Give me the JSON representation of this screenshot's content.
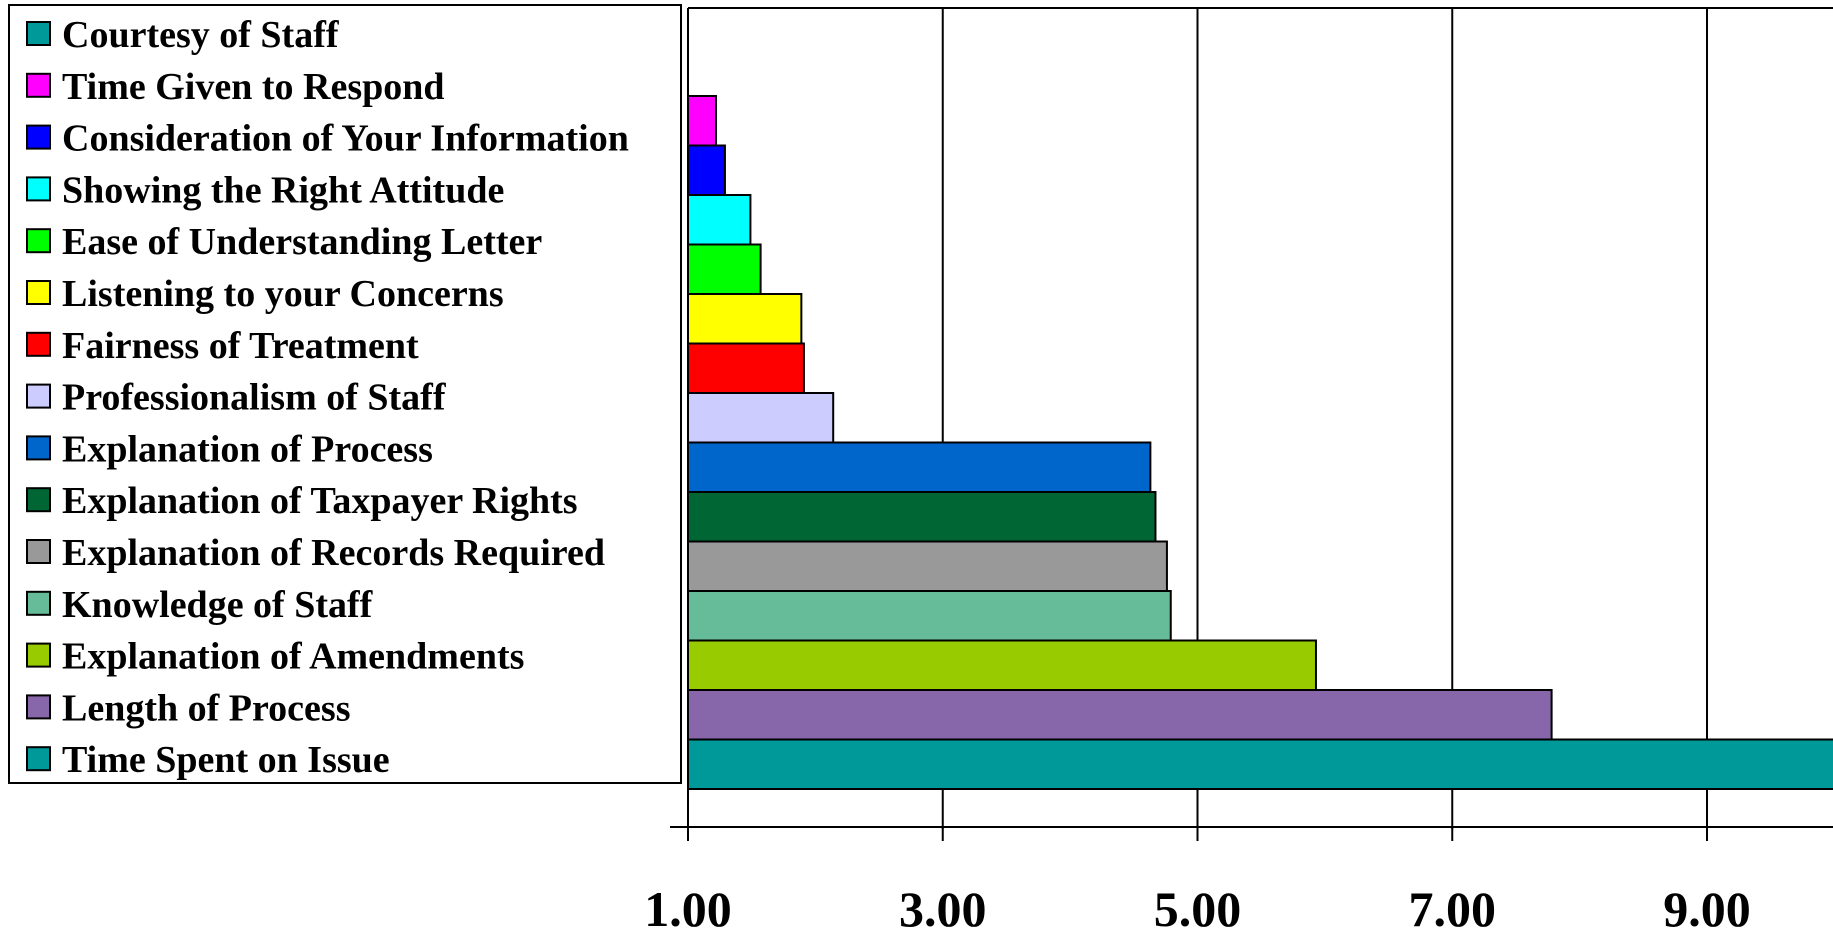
{
  "chart_data": {
    "type": "bar",
    "orientation": "horizontal",
    "categories": [
      "Courtesy of Staff",
      "Time Given to Respond",
      "Consideration of Your Information",
      "Showing the Right Attitude",
      "Ease of Understanding Letter",
      "Listening to your Concerns",
      "Fairness of Treatment",
      "Professionalism of Staff",
      "Explanation of Process",
      "Explanation of Taxpayer Rights",
      "Explanation of Records Required",
      "Knowledge of Staff",
      "Explanation of Amendments",
      "Length of Process",
      "Time Spent on Issue"
    ],
    "values": [
      1.0,
      1.22,
      1.29,
      1.49,
      1.57,
      1.89,
      1.91,
      2.14,
      4.63,
      4.67,
      4.76,
      4.79,
      5.93,
      7.78,
      11.2
    ],
    "colors": [
      "#009999",
      "#ff00ff",
      "#0000ff",
      "#00ffff",
      "#00ff00",
      "#ffff00",
      "#ff0000",
      "#ccccff",
      "#0066cc",
      "#006633",
      "#999999",
      "#66bb99",
      "#99cc00",
      "#8866aa",
      "#009999"
    ],
    "xticks": [
      "1.00",
      "3.00",
      "5.00",
      "7.00",
      "9.00"
    ],
    "xtick_values": [
      1,
      3,
      5,
      7,
      9
    ],
    "xlim": [
      1,
      11.2
    ],
    "legend_position": "left",
    "grid": true
  }
}
